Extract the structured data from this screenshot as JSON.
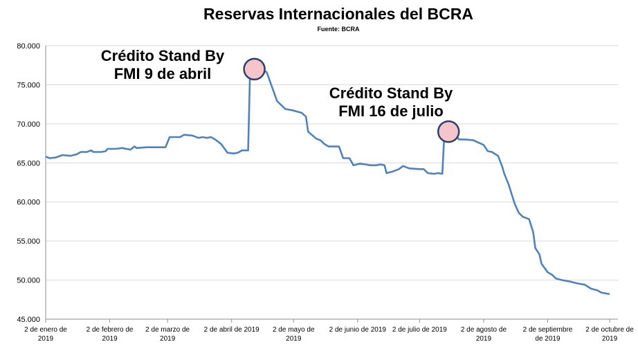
{
  "chart_data": {
    "type": "line",
    "title": "Reservas Internacionales del BCRA",
    "subtitle": "Fuente: BCRA",
    "ylim": [
      45000,
      80000
    ],
    "yticks": [
      "45.000",
      "50.000",
      "55.000",
      "60.000",
      "65.000",
      "70.000",
      "75.000",
      "80.000"
    ],
    "ytick_values": [
      45000,
      50000,
      55000,
      60000,
      65000,
      70000,
      75000,
      80000
    ],
    "grid": true,
    "x_start": "2019-01-02",
    "x_end": "2019-10-06",
    "xticks": [
      {
        "date": "2019-01-02",
        "line1": "2 de enero de",
        "line2": "2019"
      },
      {
        "date": "2019-02-02",
        "line1": "2 de febrero de",
        "line2": "2019"
      },
      {
        "date": "2019-03-02",
        "line1": "2 de marzo de",
        "line2": "2019"
      },
      {
        "date": "2019-04-02",
        "line1": "2 de abril de 2019",
        "line2": ""
      },
      {
        "date": "2019-05-02",
        "line1": "2 de mayo de",
        "line2": "2019"
      },
      {
        "date": "2019-06-02",
        "line1": "2 de junio de 2019",
        "line2": ""
      },
      {
        "date": "2019-07-02",
        "line1": "2 de julio de 2019",
        "line2": ""
      },
      {
        "date": "2019-08-02",
        "line1": "2 de agosto de",
        "line2": "2019"
      },
      {
        "date": "2019-09-02",
        "line1": "2 de septiembre",
        "line2": "de 2019"
      },
      {
        "date": "2019-10-02",
        "line1": "2 de octubre de",
        "line2": "2019"
      }
    ],
    "series": [
      {
        "color": "#4f81bd",
        "points": [
          [
            "2019-01-02",
            65800
          ],
          [
            "2019-01-04",
            65600
          ],
          [
            "2019-01-07",
            65700
          ],
          [
            "2019-01-10",
            66000
          ],
          [
            "2019-01-14",
            65900
          ],
          [
            "2019-01-17",
            66100
          ],
          [
            "2019-01-19",
            66400
          ],
          [
            "2019-01-22",
            66400
          ],
          [
            "2019-01-24",
            66600
          ],
          [
            "2019-01-25",
            66400
          ],
          [
            "2019-01-29",
            66400
          ],
          [
            "2019-01-31",
            66500
          ],
          [
            "2019-02-01",
            66800
          ],
          [
            "2019-02-05",
            66800
          ],
          [
            "2019-02-08",
            66900
          ],
          [
            "2019-02-12",
            66700
          ],
          [
            "2019-02-14",
            67100
          ],
          [
            "2019-02-15",
            66900
          ],
          [
            "2019-02-20",
            67000
          ],
          [
            "2019-02-26",
            67000
          ],
          [
            "2019-03-01",
            67000
          ],
          [
            "2019-03-03",
            68300
          ],
          [
            "2019-03-08",
            68300
          ],
          [
            "2019-03-10",
            68600
          ],
          [
            "2019-03-14",
            68500
          ],
          [
            "2019-03-17",
            68200
          ],
          [
            "2019-03-19",
            68300
          ],
          [
            "2019-03-21",
            68200
          ],
          [
            "2019-03-23",
            68300
          ],
          [
            "2019-03-25",
            68000
          ],
          [
            "2019-03-28",
            67400
          ],
          [
            "2019-03-31",
            66300
          ],
          [
            "2019-04-03",
            66200
          ],
          [
            "2019-04-05",
            66300
          ],
          [
            "2019-04-07",
            66600
          ],
          [
            "2019-04-10",
            66600
          ],
          [
            "2019-04-11",
            77600
          ],
          [
            "2019-04-13",
            77200
          ],
          [
            "2019-04-16",
            77100
          ],
          [
            "2019-04-19",
            76600
          ],
          [
            "2019-04-24",
            72900
          ],
          [
            "2019-04-28",
            71900
          ],
          [
            "2019-05-02",
            71700
          ],
          [
            "2019-05-06",
            71400
          ],
          [
            "2019-05-08",
            70900
          ],
          [
            "2019-05-09",
            69000
          ],
          [
            "2019-05-13",
            68100
          ],
          [
            "2019-05-15",
            67900
          ],
          [
            "2019-05-17",
            67400
          ],
          [
            "2019-05-19",
            67100
          ],
          [
            "2019-05-21",
            67100
          ],
          [
            "2019-05-24",
            67100
          ],
          [
            "2019-05-26",
            65600
          ],
          [
            "2019-05-29",
            65600
          ],
          [
            "2019-05-31",
            64700
          ],
          [
            "2019-06-03",
            64900
          ],
          [
            "2019-06-06",
            64800
          ],
          [
            "2019-06-08",
            64700
          ],
          [
            "2019-06-11",
            64700
          ],
          [
            "2019-06-13",
            64800
          ],
          [
            "2019-06-15",
            64700
          ],
          [
            "2019-06-16",
            63700
          ],
          [
            "2019-06-19",
            63900
          ],
          [
            "2019-06-22",
            64200
          ],
          [
            "2019-06-24",
            64600
          ],
          [
            "2019-06-27",
            64300
          ],
          [
            "2019-07-02",
            64200
          ],
          [
            "2019-07-04",
            64200
          ],
          [
            "2019-07-06",
            63700
          ],
          [
            "2019-07-09",
            63600
          ],
          [
            "2019-07-11",
            63700
          ],
          [
            "2019-07-13",
            63600
          ],
          [
            "2019-07-14",
            68800
          ],
          [
            "2019-07-17",
            68600
          ],
          [
            "2019-07-20",
            68400
          ],
          [
            "2019-07-21",
            68000
          ],
          [
            "2019-07-24",
            68000
          ],
          [
            "2019-07-28",
            67900
          ],
          [
            "2019-08-02",
            67300
          ],
          [
            "2019-08-04",
            66500
          ],
          [
            "2019-08-06",
            66400
          ],
          [
            "2019-08-09",
            65900
          ],
          [
            "2019-08-11",
            64500
          ],
          [
            "2019-08-12",
            63600
          ],
          [
            "2019-08-14",
            62300
          ],
          [
            "2019-08-17",
            59800
          ],
          [
            "2019-08-19",
            58600
          ],
          [
            "2019-08-21",
            58100
          ],
          [
            "2019-08-24",
            57800
          ],
          [
            "2019-08-26",
            56100
          ],
          [
            "2019-08-27",
            54100
          ],
          [
            "2019-08-29",
            53300
          ],
          [
            "2019-08-30",
            52100
          ],
          [
            "2019-09-02",
            51000
          ],
          [
            "2019-09-04",
            50700
          ],
          [
            "2019-09-06",
            50200
          ],
          [
            "2019-09-09",
            50000
          ],
          [
            "2019-09-13",
            49800
          ],
          [
            "2019-09-16",
            49600
          ],
          [
            "2019-09-20",
            49400
          ],
          [
            "2019-09-23",
            48900
          ],
          [
            "2019-09-26",
            48700
          ],
          [
            "2019-09-28",
            48400
          ],
          [
            "2019-10-02",
            48200
          ]
        ]
      }
    ],
    "annotations": [
      {
        "date": "2019-04-11",
        "value": 77000,
        "lines": [
          "Crédito Stand By",
          "FMI 9 de abril"
        ]
      },
      {
        "date": "2019-07-14",
        "value": 69000,
        "lines": [
          "Crédito Stand By",
          "FMI 16 de julio"
        ]
      }
    ],
    "marker_fill": "#f4c6cb",
    "marker_stroke": "#2f3f6b"
  }
}
